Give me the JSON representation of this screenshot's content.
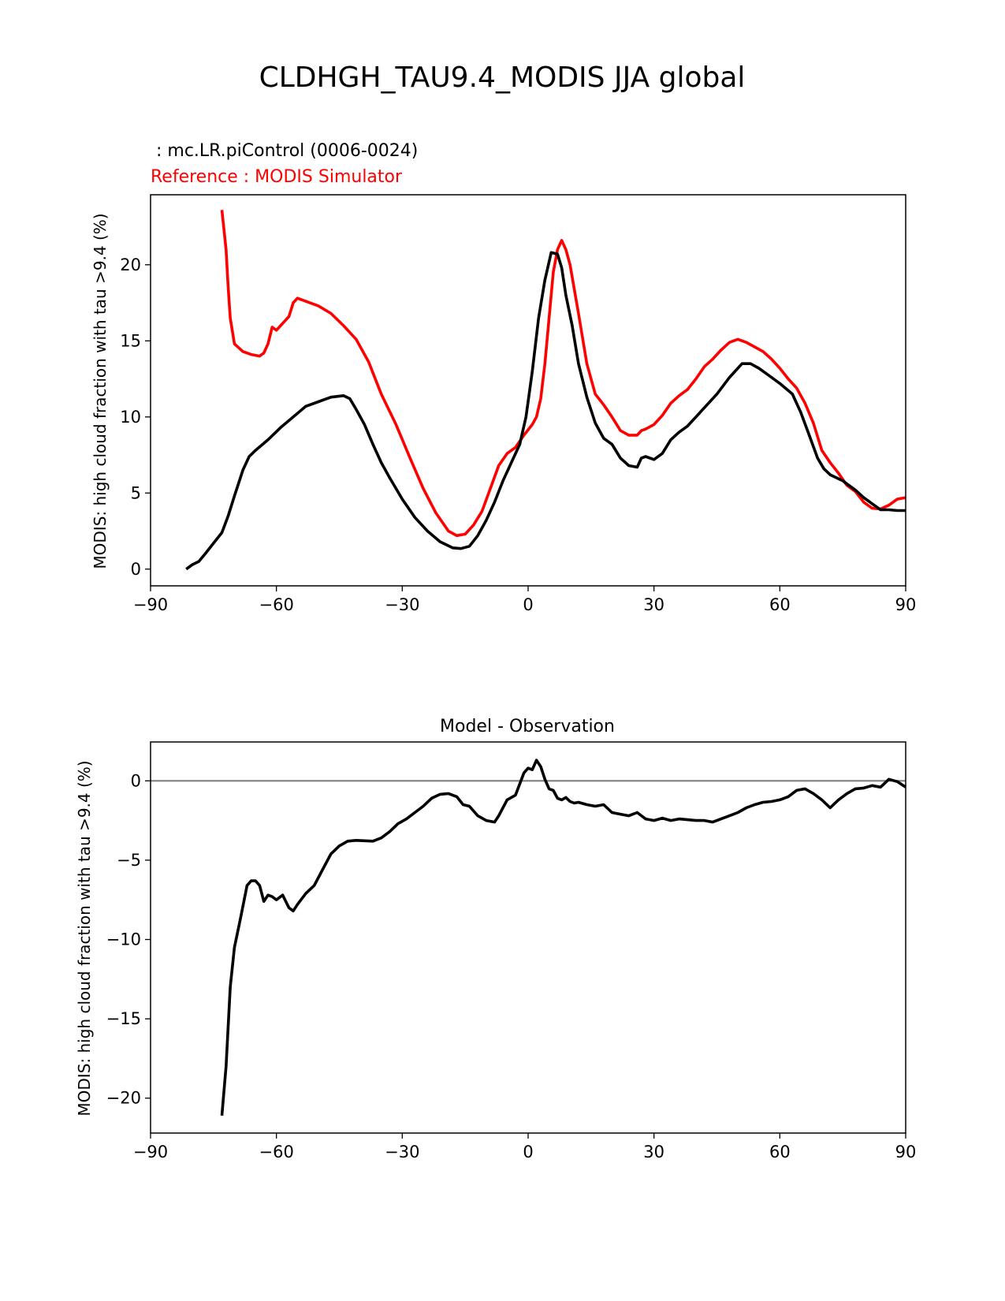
{
  "figure": {
    "title": "CLDHGH_TAU9.4_MODIS JJA global",
    "colors": {
      "test": "#000000",
      "reference": "#ff0000",
      "zero_line": "#808080"
    }
  },
  "chart_data": [
    {
      "type": "line",
      "legend_test": " : mc.LR.piControl (0006-0024)",
      "legend_ref": "Reference : MODIS Simulator",
      "xlabel": "",
      "ylabel": "MODIS: high cloud fraction with tau >9.4 (%)",
      "xlim": [
        -90,
        90
      ],
      "ylim": [
        -1.1,
        24.6
      ],
      "xticks": [
        -90,
        -60,
        -30,
        0,
        30,
        60,
        90
      ],
      "xtick_labels": [
        "−90",
        "−60",
        "−30",
        "0",
        "30",
        "60",
        "90"
      ],
      "yticks": [
        0,
        5,
        10,
        15,
        20
      ],
      "ytick_labels": [
        "0",
        "5",
        "10",
        "15",
        "20"
      ],
      "series": [
        {
          "name": "test",
          "x": [
            -81.5,
            -80,
            -78.5,
            -77,
            -75,
            -73,
            -71.5,
            -70,
            -68,
            -66.5,
            -65,
            -62,
            -59,
            -56,
            -53,
            -50,
            -47,
            -44,
            -42.5,
            -41,
            -39,
            -37,
            -35,
            -33,
            -30,
            -27,
            -24,
            -21,
            -18,
            -16,
            -14,
            -12,
            -10,
            -8,
            -6,
            -4,
            -2,
            -0.5,
            1,
            2.5,
            4,
            5.5,
            7,
            8,
            9,
            10.5,
            12,
            14,
            16,
            18,
            20,
            22,
            24,
            26,
            27,
            28,
            30,
            32,
            34,
            36,
            38,
            40,
            42,
            45,
            48,
            51,
            53,
            55,
            57,
            60,
            63,
            65,
            67,
            69,
            70.5,
            72,
            75,
            78,
            80,
            82,
            84,
            86,
            88,
            90
          ],
          "y": [
            0,
            0.3,
            0.5,
            1.0,
            1.7,
            2.4,
            3.5,
            4.8,
            6.5,
            7.4,
            7.8,
            8.5,
            9.3,
            10.0,
            10.7,
            11.0,
            11.3,
            11.4,
            11.2,
            10.5,
            9.5,
            8.2,
            7.0,
            6.0,
            4.6,
            3.4,
            2.5,
            1.8,
            1.4,
            1.35,
            1.5,
            2.2,
            3.2,
            4.4,
            5.8,
            7.0,
            8.2,
            10.0,
            13.0,
            16.5,
            19.0,
            20.8,
            20.7,
            19.8,
            18.0,
            16.0,
            13.5,
            11.3,
            9.6,
            8.6,
            8.2,
            7.3,
            6.8,
            6.7,
            7.3,
            7.4,
            7.2,
            7.6,
            8.5,
            9.0,
            9.4,
            10.0,
            10.6,
            11.5,
            12.6,
            13.5,
            13.5,
            13.2,
            12.8,
            12.2,
            11.5,
            10.3,
            8.8,
            7.3,
            6.6,
            6.2,
            5.8,
            5.2,
            4.7,
            4.3,
            3.9,
            3.9,
            3.85,
            3.85
          ]
        },
        {
          "name": "reference",
          "x": [
            -73,
            -72,
            -71.5,
            -71,
            -70,
            -68,
            -66,
            -64,
            -63,
            -62,
            -61,
            -60,
            -59,
            -58,
            -57,
            -56,
            -55,
            -53,
            -50,
            -47,
            -44,
            -41,
            -38,
            -35,
            -31.5,
            -28,
            -25,
            -22,
            -19,
            -17,
            -15,
            -13,
            -11,
            -9,
            -7,
            -5,
            -3,
            -1,
            1,
            2,
            3,
            4,
            5,
            6,
            7,
            8,
            9,
            10,
            12,
            14,
            16,
            18,
            20,
            22,
            24,
            26,
            27,
            28,
            30,
            32,
            34,
            36,
            38,
            40,
            42,
            44,
            46,
            48,
            50,
            52,
            54,
            56,
            58,
            60,
            62,
            64,
            66,
            68,
            70,
            72,
            74,
            76,
            78,
            80,
            82,
            84,
            86,
            88,
            90
          ],
          "y": [
            23.6,
            21.0,
            18.5,
            16.5,
            14.8,
            14.3,
            14.1,
            14.0,
            14.2,
            14.8,
            15.9,
            15.7,
            16.0,
            16.3,
            16.6,
            17.5,
            17.8,
            17.6,
            17.3,
            16.8,
            16.0,
            15.1,
            13.6,
            11.5,
            9.5,
            7.2,
            5.3,
            3.7,
            2.5,
            2.2,
            2.3,
            2.9,
            3.8,
            5.3,
            6.8,
            7.6,
            8.0,
            8.8,
            9.5,
            10.0,
            11.2,
            13.5,
            16.5,
            19.5,
            21.0,
            21.6,
            21.0,
            20.0,
            16.8,
            13.5,
            11.5,
            10.8,
            10.0,
            9.1,
            8.8,
            8.8,
            9.1,
            9.2,
            9.5,
            10.1,
            10.9,
            11.4,
            11.8,
            12.5,
            13.3,
            13.8,
            14.4,
            14.9,
            15.1,
            14.9,
            14.6,
            14.3,
            13.8,
            13.2,
            12.5,
            11.9,
            10.9,
            9.6,
            7.8,
            7.0,
            6.3,
            5.5,
            5.1,
            4.4,
            4.0,
            3.95,
            4.2,
            4.6,
            4.7
          ]
        }
      ]
    },
    {
      "type": "line",
      "title": "Model - Observation",
      "xlabel": "",
      "ylabel": "MODIS: high cloud fraction with tau >9.4 (%)",
      "xlim": [
        -90,
        90
      ],
      "ylim": [
        -22.2,
        2.45
      ],
      "xticks": [
        -90,
        -60,
        -30,
        0,
        30,
        60,
        90
      ],
      "xtick_labels": [
        "−90",
        "−60",
        "−30",
        "0",
        "30",
        "60",
        "90"
      ],
      "yticks": [
        -20,
        -15,
        -10,
        -5,
        0
      ],
      "ytick_labels": [
        "−20",
        "−15",
        "−10",
        "−5",
        "0"
      ],
      "zero_line": 0,
      "series": [
        {
          "name": "difference",
          "x": [
            -73,
            -72,
            -71,
            -70,
            -68.5,
            -67,
            -66,
            -65,
            -64,
            -63,
            -62,
            -61,
            -60,
            -58.5,
            -57,
            -56,
            -55,
            -53,
            -51,
            -49,
            -47,
            -45,
            -43,
            -41,
            -37,
            -35,
            -33,
            -31,
            -29,
            -27,
            -25,
            -23,
            -21,
            -19,
            -17,
            -15.5,
            -14,
            -12,
            -10,
            -8,
            -7,
            -5,
            -3,
            -1,
            0,
            1,
            2,
            3,
            4,
            5,
            6,
            7,
            8,
            9,
            10,
            11,
            12,
            14,
            16,
            18,
            20,
            22,
            24,
            26,
            28,
            30,
            32,
            34,
            36,
            38,
            40,
            42,
            44,
            46,
            48,
            50,
            52,
            54,
            56,
            58,
            60,
            62,
            64,
            66,
            68,
            70,
            72,
            74,
            76,
            78,
            80,
            82,
            84,
            86,
            88,
            90
          ],
          "y": [
            -21.1,
            -18.0,
            -13.0,
            -10.5,
            -8.6,
            -6.6,
            -6.3,
            -6.3,
            -6.6,
            -7.6,
            -7.2,
            -7.3,
            -7.5,
            -7.2,
            -8.0,
            -8.2,
            -7.8,
            -7.1,
            -6.6,
            -5.6,
            -4.6,
            -4.1,
            -3.8,
            -3.75,
            -3.8,
            -3.6,
            -3.2,
            -2.7,
            -2.4,
            -2.0,
            -1.6,
            -1.1,
            -0.85,
            -0.8,
            -1.0,
            -1.5,
            -1.6,
            -2.2,
            -2.5,
            -2.6,
            -2.2,
            -1.2,
            -0.9,
            0.5,
            0.8,
            0.7,
            1.3,
            0.9,
            0.1,
            -0.5,
            -0.6,
            -1.1,
            -1.2,
            -1.05,
            -1.3,
            -1.4,
            -1.35,
            -1.5,
            -1.6,
            -1.5,
            -2.0,
            -2.1,
            -2.2,
            -2.0,
            -2.4,
            -2.5,
            -2.35,
            -2.5,
            -2.4,
            -2.45,
            -2.5,
            -2.5,
            -2.6,
            -2.4,
            -2.2,
            -2.0,
            -1.7,
            -1.5,
            -1.35,
            -1.3,
            -1.2,
            -1.0,
            -0.6,
            -0.5,
            -0.8,
            -1.2,
            -1.7,
            -1.2,
            -0.8,
            -0.5,
            -0.45,
            -0.3,
            -0.4,
            0.1,
            -0.05,
            -0.4
          ]
        }
      ]
    }
  ]
}
